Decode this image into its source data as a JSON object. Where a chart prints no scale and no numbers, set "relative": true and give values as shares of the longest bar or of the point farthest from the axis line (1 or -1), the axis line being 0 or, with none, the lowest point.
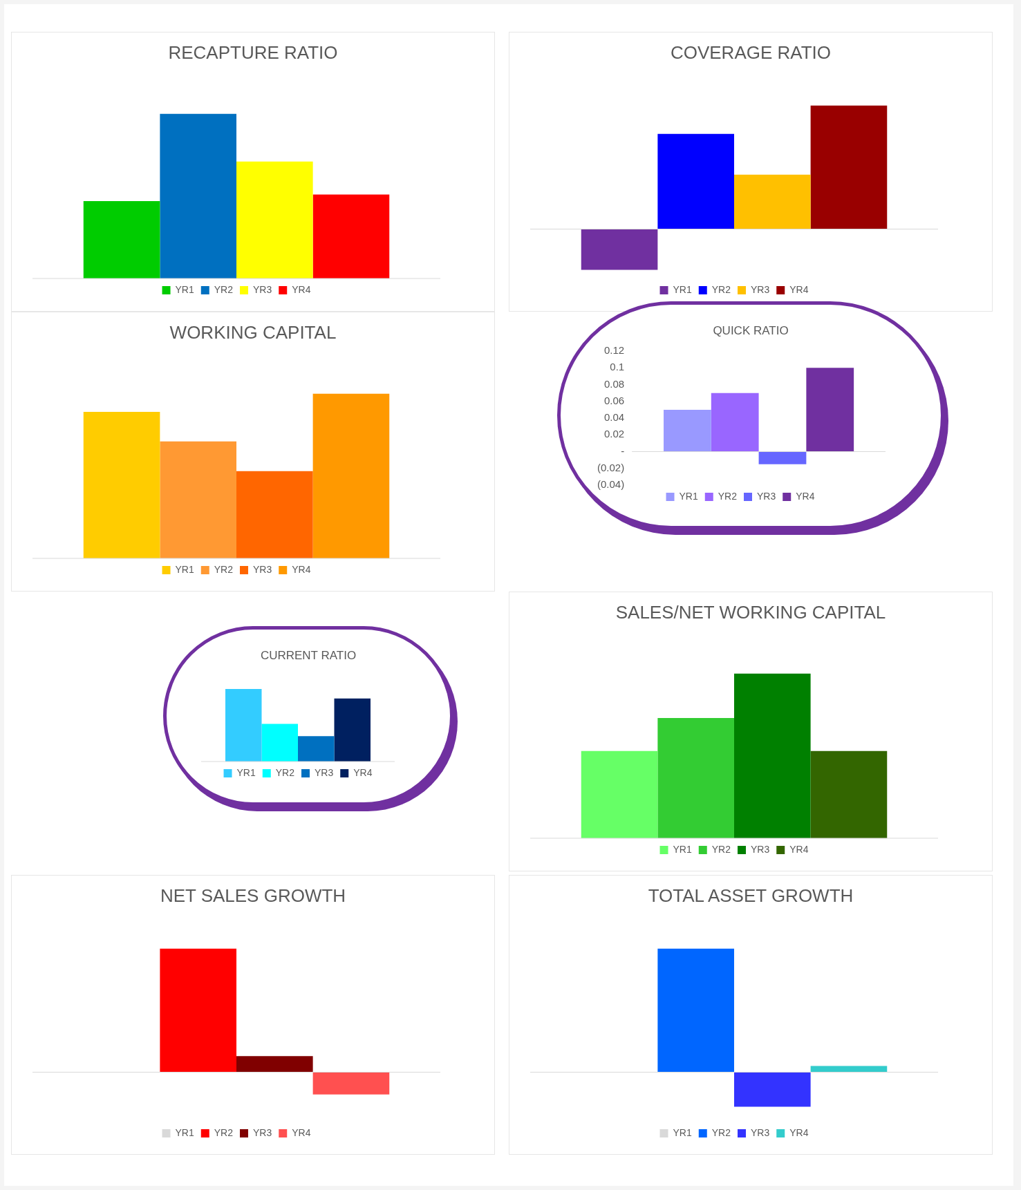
{
  "chart_data": [
    {
      "type": "bar",
      "title": "RECAPTURE RATIO",
      "relative": true,
      "categories": [
        null
      ],
      "legend": "bottom",
      "series": [
        {
          "name": "YR1",
          "color": "#00cc00",
          "values": [
            0.47
          ]
        },
        {
          "name": "YR2",
          "color": "#0070c0",
          "values": [
            1
          ]
        },
        {
          "name": "YR3",
          "color": "#ffff00",
          "values": [
            0.71
          ]
        },
        {
          "name": "YR4",
          "color": "#ff0000",
          "values": [
            0.51
          ]
        }
      ]
    },
    {
      "type": "bar",
      "title": "COVERAGE RATIO",
      "relative": true,
      "categories": [
        null
      ],
      "legend": "bottom",
      "series": [
        {
          "name": "YR1",
          "color": "#7030a0",
          "values": [
            -0.33
          ]
        },
        {
          "name": "YR2",
          "color": "#0000ff",
          "values": [
            0.77
          ]
        },
        {
          "name": "YR3",
          "color": "#ffc000",
          "values": [
            0.44
          ]
        },
        {
          "name": "YR4",
          "color": "#990000",
          "values": [
            1
          ]
        }
      ]
    },
    {
      "type": "bar",
      "title": "WORKING CAPITAL",
      "relative": true,
      "categories": [
        null
      ],
      "legend": "bottom",
      "series": [
        {
          "name": "YR1",
          "color": "#ffcc00",
          "values": [
            0.89
          ]
        },
        {
          "name": "YR2",
          "color": "#ff9933",
          "values": [
            0.71
          ]
        },
        {
          "name": "YR3",
          "color": "#ff6600",
          "values": [
            0.53
          ]
        },
        {
          "name": "YR4",
          "color": "#ff9900",
          "values": [
            1
          ]
        }
      ]
    },
    {
      "type": "bar",
      "title": "QUICK RATIO",
      "categories": [
        null
      ],
      "legend": "bottom",
      "ylim": [
        -0.04,
        0.12
      ],
      "yticks": [
        0.12,
        0.1,
        0.08,
        0.06,
        0.04,
        0.02,
        {
          "value": 0,
          "label": "-"
        },
        {
          "value": -0.02,
          "label": "(0.02)"
        },
        {
          "value": -0.04,
          "label": "(0.04)"
        }
      ],
      "series": [
        {
          "name": "YR1",
          "color": "#9999ff",
          "values": [
            0.05
          ]
        },
        {
          "name": "YR2",
          "color": "#9966ff",
          "values": [
            0.07
          ]
        },
        {
          "name": "YR3",
          "color": "#6666ff",
          "values": [
            -0.015
          ]
        },
        {
          "name": "YR4",
          "color": "#7030a0",
          "values": [
            0.1
          ]
        }
      ]
    },
    {
      "type": "bar",
      "title": "CURRENT RATIO",
      "relative": true,
      "categories": [
        null
      ],
      "legend": "bottom",
      "series": [
        {
          "name": "YR1",
          "color": "#33ccff",
          "values": [
            1
          ]
        },
        {
          "name": "YR2",
          "color": "#00ffff",
          "values": [
            0.52
          ]
        },
        {
          "name": "YR3",
          "color": "#0070c0",
          "values": [
            0.35
          ]
        },
        {
          "name": "YR4",
          "color": "#002060",
          "values": [
            0.87
          ]
        }
      ]
    },
    {
      "type": "bar",
      "title": "SALES/NET WORKING CAPITAL",
      "relative": true,
      "categories": [
        null
      ],
      "legend": "bottom",
      "series": [
        {
          "name": "YR1",
          "color": "#66ff66",
          "values": [
            0.53
          ]
        },
        {
          "name": "YR2",
          "color": "#33cc33",
          "values": [
            0.73
          ]
        },
        {
          "name": "YR3",
          "color": "#008000",
          "values": [
            1
          ]
        },
        {
          "name": "YR4",
          "color": "#336600",
          "values": [
            0.53
          ]
        }
      ]
    },
    {
      "type": "bar",
      "title": "NET SALES GROWTH",
      "relative": true,
      "categories": [
        null
      ],
      "legend": "bottom",
      "series": [
        {
          "name": "YR1",
          "color": "#d9d9d9",
          "values": [
            null
          ]
        },
        {
          "name": "YR2",
          "color": "#ff0000",
          "values": [
            1
          ]
        },
        {
          "name": "YR3",
          "color": "#800000",
          "values": [
            0.13
          ]
        },
        {
          "name": "YR4",
          "color": "#ff5050",
          "values": [
            -0.18
          ]
        }
      ]
    },
    {
      "type": "bar",
      "title": "TOTAL ASSET GROWTH",
      "relative": true,
      "categories": [
        null
      ],
      "legend": "bottom",
      "series": [
        {
          "name": "YR1",
          "color": "#d9d9d9",
          "values": [
            null
          ]
        },
        {
          "name": "YR2",
          "color": "#0066ff",
          "values": [
            1
          ]
        },
        {
          "name": "YR3",
          "color": "#3333ff",
          "values": [
            -0.28
          ]
        },
        {
          "name": "YR4",
          "color": "#33cccc",
          "values": [
            0.05
          ]
        }
      ]
    }
  ]
}
